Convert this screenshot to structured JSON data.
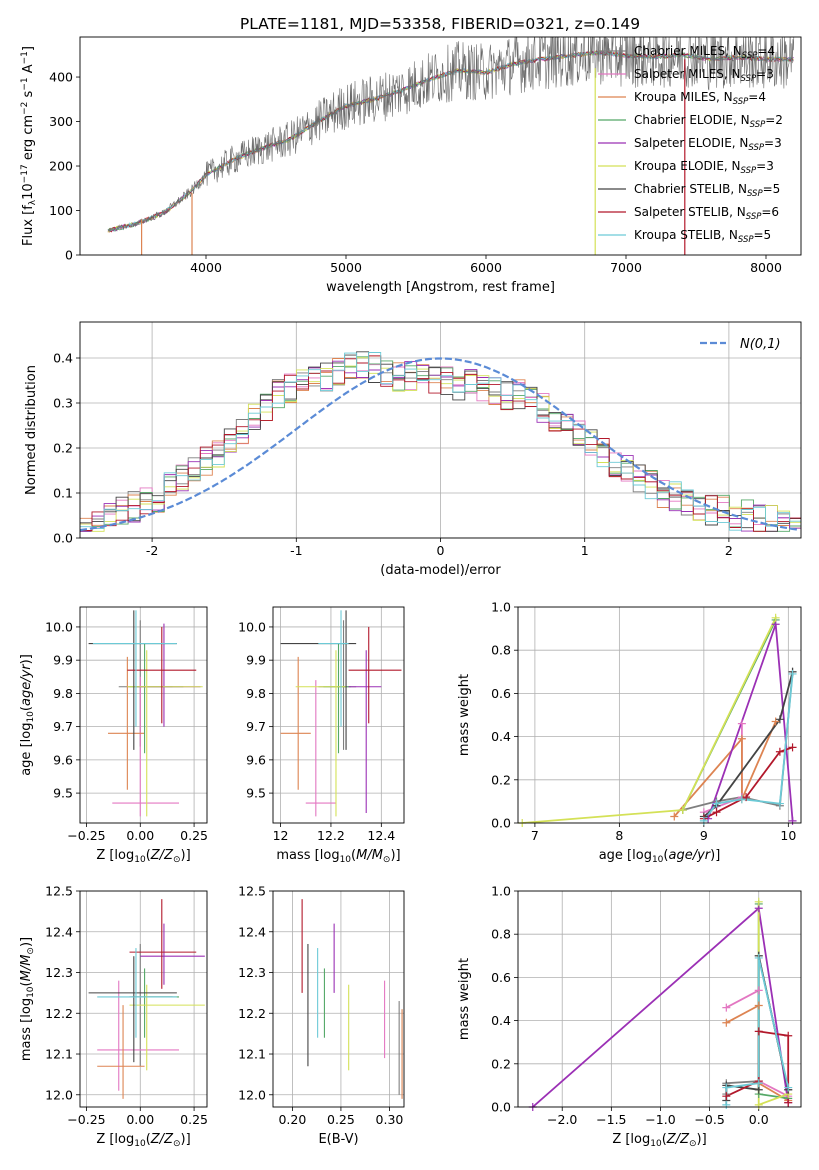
{
  "title": "PLATE=1181, MJD=53358, FIBERID=0321, z=0.149",
  "series_styles": [
    {
      "name": "Chabrier MILES, N_SSP=4",
      "label_main": "Chabrier MILES, N",
      "label_sub": "SSP",
      "label_tail": "=4",
      "color": "#7f7f7f"
    },
    {
      "name": "Salpeter MILES, N_SSP=3",
      "label_main": "Salpeter MILES, N",
      "label_sub": "SSP",
      "label_tail": "=3",
      "color": "#e377c2"
    },
    {
      "name": "Kroupa MILES, N_SSP=4",
      "label_main": "Kroupa MILES, N",
      "label_sub": "SSP",
      "label_tail": "=4",
      "color": "#dd8452"
    },
    {
      "name": "Chabrier ELODIE, N_SSP=2",
      "label_main": "Chabrier ELODIE, N",
      "label_sub": "SSP",
      "label_tail": "=2",
      "color": "#55a868"
    },
    {
      "name": "Salpeter ELODIE, N_SSP=3",
      "label_main": "Salpeter ELODIE, N",
      "label_sub": "SSP",
      "label_tail": "=3",
      "color": "#9b30b5"
    },
    {
      "name": "Kroupa ELODIE, N_SSP=3",
      "label_main": "Kroupa ELODIE, N",
      "label_sub": "SSP",
      "label_tail": "=3",
      "color": "#d4e157"
    },
    {
      "name": "Chabrier STELIB, N_SSP=5",
      "label_main": "Chabrier STELIB, N",
      "label_sub": "SSP",
      "label_tail": "=5",
      "color": "#444444"
    },
    {
      "name": "Salpeter STELIB, N_SSP=6",
      "label_main": "Salpeter STELIB, N",
      "label_sub": "SSP",
      "label_tail": "=6",
      "color": "#b2182b"
    },
    {
      "name": "Kroupa STELIB, N_SSP=5",
      "label_main": "Kroupa STELIB, N",
      "label_sub": "SSP",
      "label_tail": "=5",
      "color": "#6ccad6"
    }
  ],
  "chart_data": [
    {
      "id": "spectrum",
      "type": "line",
      "xlabel": "wavelength [Angstrom, rest frame]",
      "ylabel": "Flux [f_λ 10^-17 erg cm^-2 s^-1 A^-1]",
      "ylabel_parts": {
        "a": "Flux [f",
        "a_sub": "λ",
        "b": "10",
        "b_sup": "−17",
        "c": " erg cm",
        "c_sup": "−2",
        "d": " s",
        "d_sup": "−1",
        "e": " A",
        "e_sup": "−1",
        "f": "]"
      },
      "xlim": [
        3100,
        8250
      ],
      "ylim": [
        0,
        490
      ],
      "xticks": [
        4000,
        5000,
        6000,
        7000,
        8000
      ],
      "yticks": [
        0,
        100,
        200,
        300,
        400
      ],
      "grid": false,
      "legend": "top-right",
      "x": [
        3300,
        3500,
        3700,
        3900,
        4000,
        4200,
        4400,
        4600,
        4800,
        5000,
        5200,
        5400,
        5600,
        5800,
        6000,
        6200,
        6400,
        6600,
        6800,
        7000,
        7200,
        7400,
        7600,
        7800,
        8000,
        8200
      ],
      "y": [
        55,
        70,
        95,
        145,
        180,
        215,
        240,
        260,
        300,
        335,
        350,
        370,
        395,
        415,
        410,
        430,
        440,
        448,
        455,
        448,
        445,
        450,
        440,
        445,
        440,
        440
      ],
      "model_cutoffs": {
        "lower_x": [
          3540,
          3900
        ],
        "upper_x": [
          6780,
          7420
        ]
      }
    },
    {
      "id": "residual_histogram",
      "type": "step",
      "xlabel": "(data-model)/error",
      "ylabel": "Normed distribution",
      "xlim": [
        -2.5,
        2.5
      ],
      "ylim": [
        0,
        0.48
      ],
      "xticks": [
        -2,
        -1,
        0,
        1,
        2
      ],
      "yticks": [
        0.0,
        0.1,
        0.2,
        0.3,
        0.4
      ],
      "grid": true,
      "legend": "top-right",
      "reference_label": "N(0,1)",
      "bin_width": 0.1,
      "envelope": [
        0.03,
        0.04,
        0.05,
        0.06,
        0.07,
        0.08,
        0.09,
        0.11,
        0.13,
        0.15,
        0.17,
        0.19,
        0.21,
        0.24,
        0.27,
        0.29,
        0.32,
        0.33,
        0.34,
        0.35,
        0.36,
        0.37,
        0.38,
        0.39,
        0.38,
        0.37,
        0.36,
        0.36,
        0.36,
        0.35,
        0.35,
        0.34,
        0.34,
        0.33,
        0.33,
        0.32,
        0.32,
        0.3,
        0.29,
        0.27,
        0.25,
        0.23,
        0.21,
        0.19,
        0.17,
        0.15,
        0.13,
        0.12,
        0.1,
        0.09,
        0.08,
        0.07,
        0.06,
        0.06,
        0.05,
        0.05,
        0.04,
        0.04,
        0.03,
        0.03
      ]
    },
    {
      "id": "age_vs_Z",
      "type": "errorbar",
      "xlabel": "Z [log10(Z/Z⊙)]",
      "ylabel": "age [log10(age/yr)]",
      "xlim": [
        -0.28,
        0.31
      ],
      "ylim": [
        9.41,
        10.06
      ],
      "xticks": [
        -0.25,
        0.0,
        0.25
      ],
      "xticklabels": [
        "−0.25",
        "0.00",
        "0.25"
      ],
      "yticks": [
        9.5,
        9.6,
        9.7,
        9.8,
        9.9,
        10.0
      ],
      "grid": true,
      "points": [
        {
          "s": 0,
          "x": 0.0,
          "y": 9.82,
          "xl": -0.1,
          "xh": 0.15,
          "yl": 9.64,
          "yh": 10.02
        },
        {
          "s": 1,
          "x": 0.0,
          "y": 9.47,
          "xl": -0.13,
          "xh": 0.18,
          "yl": 9.43,
          "yh": 9.85
        },
        {
          "s": 2,
          "x": -0.06,
          "y": 9.68,
          "xl": -0.15,
          "xh": 0.02,
          "yl": 9.51,
          "yh": 9.91
        },
        {
          "s": 3,
          "x": 0.02,
          "y": 9.82,
          "xl": -0.05,
          "xh": 0.2,
          "yl": 9.62,
          "yh": 9.95
        },
        {
          "s": 4,
          "x": 0.11,
          "y": 9.82,
          "xl": -0.02,
          "xh": 0.28,
          "yl": 9.7,
          "yh": 10.01
        },
        {
          "s": 5,
          "x": 0.03,
          "y": 9.82,
          "xl": -0.06,
          "xh": 0.29,
          "yl": 9.43,
          "yh": 9.93
        },
        {
          "s": 6,
          "x": -0.03,
          "y": 9.95,
          "xl": -0.24,
          "xh": 0.17,
          "yl": 9.63,
          "yh": 10.05
        },
        {
          "s": 7,
          "x": 0.1,
          "y": 9.87,
          "xl": -0.06,
          "xh": 0.26,
          "yl": 9.71,
          "yh": 10.0
        },
        {
          "s": 8,
          "x": -0.02,
          "y": 9.95,
          "xl": -0.22,
          "xh": 0.17,
          "yl": 9.7,
          "yh": 10.05
        }
      ]
    },
    {
      "id": "age_vs_mass",
      "type": "errorbar",
      "xlabel": "mass [log10(M/M⊙)]",
      "ylabel": "",
      "xlim": [
        11.97,
        12.49
      ],
      "ylim": [
        9.41,
        10.06
      ],
      "xticks": [
        12.0,
        12.2,
        12.4
      ],
      "yticks": [
        9.5,
        9.6,
        9.7,
        9.8,
        9.9,
        10.0
      ],
      "grid": true,
      "points": [
        {
          "s": 0,
          "x": 12.25,
          "y": 9.82,
          "xl": 12.15,
          "xh": 12.3,
          "yl": 9.63,
          "yh": 10.02
        },
        {
          "s": 1,
          "x": 12.14,
          "y": 9.47,
          "xl": 12.1,
          "xh": 12.22,
          "yl": 9.43,
          "yh": 9.84
        },
        {
          "s": 2,
          "x": 12.07,
          "y": 9.68,
          "xl": 12.0,
          "xh": 12.12,
          "yl": 9.51,
          "yh": 9.91
        },
        {
          "s": 3,
          "x": 12.23,
          "y": 9.82,
          "xl": 12.17,
          "xh": 12.28,
          "yl": 9.62,
          "yh": 9.95
        },
        {
          "s": 4,
          "x": 12.34,
          "y": 9.82,
          "xl": 12.27,
          "xh": 12.4,
          "yl": 9.44,
          "yh": 9.93
        },
        {
          "s": 5,
          "x": 12.22,
          "y": 9.82,
          "xl": 12.06,
          "xh": 12.26,
          "yl": 9.43,
          "yh": 9.93
        },
        {
          "s": 6,
          "x": 12.26,
          "y": 9.95,
          "xl": 12.0,
          "xh": 12.3,
          "yl": 9.63,
          "yh": 10.05
        },
        {
          "s": 7,
          "x": 12.35,
          "y": 9.87,
          "xl": 12.27,
          "xh": 12.48,
          "yl": 9.71,
          "yh": 10.0
        },
        {
          "s": 8,
          "x": 12.24,
          "y": 9.95,
          "xl": 12.15,
          "xh": 12.27,
          "yl": 9.7,
          "yh": 10.05
        }
      ]
    },
    {
      "id": "weight_vs_age",
      "type": "line",
      "xlabel": "age [log10(age/yr)]",
      "ylabel": "mass weight",
      "xlim": [
        6.8,
        10.15
      ],
      "ylim": [
        0,
        1.0
      ],
      "xticks": [
        7,
        8,
        9,
        10
      ],
      "yticks": [
        0.0,
        0.2,
        0.4,
        0.6,
        0.8,
        1.0
      ],
      "grid": true,
      "series": [
        {
          "s": 0,
          "x": [
            8.75,
            9.15,
            9.45,
            9.9,
            10.05
          ],
          "y": [
            0.06,
            0.1,
            0.12,
            0.08,
            0.7
          ]
        },
        {
          "s": 1,
          "x": [
            9.45,
            9.45,
            9.0
          ],
          "y": [
            0.46,
            0.12,
            0.05
          ]
        },
        {
          "s": 2,
          "x": [
            8.65,
            9.45,
            9.45,
            9.85
          ],
          "y": [
            0.03,
            0.39,
            0.11,
            0.47
          ]
        },
        {
          "s": 3,
          "x": [
            8.75,
            9.85
          ],
          "y": [
            0.06,
            0.94
          ]
        },
        {
          "s": 4,
          "x": [
            9.05,
            9.85,
            10.05
          ],
          "y": [
            0.02,
            0.92,
            0.01
          ]
        },
        {
          "s": 5,
          "x": [
            6.85,
            8.75,
            9.85
          ],
          "y": [
            0.0,
            0.06,
            0.95
          ]
        },
        {
          "s": 6,
          "x": [
            9.0,
            9.15,
            9.9,
            10.05
          ],
          "y": [
            0.03,
            0.08,
            0.48,
            0.7
          ]
        },
        {
          "s": 7,
          "x": [
            9.0,
            9.15,
            9.5,
            9.9,
            10.05
          ],
          "y": [
            0.02,
            0.05,
            0.12,
            0.33,
            0.35
          ]
        },
        {
          "s": 8,
          "x": [
            9.0,
            9.15,
            9.45,
            9.9,
            10.05
          ],
          "y": [
            0.01,
            0.09,
            0.11,
            0.09,
            0.69
          ]
        }
      ]
    },
    {
      "id": "mass_vs_Z",
      "type": "errorbar",
      "xlabel": "Z [log10(Z/Z⊙)]",
      "ylabel": "mass [log10(M/M⊙)]",
      "xlim": [
        -0.28,
        0.31
      ],
      "ylim": [
        11.97,
        12.5
      ],
      "xticks": [
        -0.25,
        0.0,
        0.25
      ],
      "xticklabels": [
        "−0.25",
        "0.00",
        "0.25"
      ],
      "yticks": [
        12.0,
        12.1,
        12.2,
        12.3,
        12.4,
        12.5
      ],
      "grid": true,
      "points": [
        {
          "s": 0,
          "x": 0.0,
          "y": 12.24,
          "xl": -0.05,
          "xh": 0.15,
          "yl": 12.07,
          "yh": 12.37
        },
        {
          "s": 1,
          "x": -0.1,
          "y": 12.11,
          "xl": -0.2,
          "xh": 0.18,
          "yl": 12.01,
          "yh": 12.28
        },
        {
          "s": 2,
          "x": -0.08,
          "y": 12.07,
          "xl": -0.2,
          "xh": 0.02,
          "yl": 11.99,
          "yh": 12.22
        },
        {
          "s": 3,
          "x": 0.02,
          "y": 12.24,
          "xl": -0.04,
          "xh": 0.18,
          "yl": 12.14,
          "yh": 12.31
        },
        {
          "s": 4,
          "x": 0.11,
          "y": 12.34,
          "xl": 0.0,
          "xh": 0.3,
          "yl": 12.27,
          "yh": 12.42
        },
        {
          "s": 5,
          "x": 0.03,
          "y": 12.22,
          "xl": -0.05,
          "xh": 0.3,
          "yl": 12.06,
          "yh": 12.27
        },
        {
          "s": 6,
          "x": -0.03,
          "y": 12.25,
          "xl": -0.24,
          "xh": 0.17,
          "yl": 12.08,
          "yh": 12.34
        },
        {
          "s": 7,
          "x": 0.1,
          "y": 12.35,
          "xl": -0.05,
          "xh": 0.26,
          "yl": 12.26,
          "yh": 12.48
        },
        {
          "s": 8,
          "x": -0.02,
          "y": 12.24,
          "xl": -0.2,
          "xh": 0.17,
          "yl": 12.14,
          "yh": 12.36
        }
      ]
    },
    {
      "id": "mass_vs_EBV",
      "type": "errorbar",
      "xlabel": "E(B-V)",
      "ylabel": "",
      "xlim": [
        0.18,
        0.315
      ],
      "ylim": [
        11.97,
        12.5
      ],
      "xticks": [
        0.2,
        0.25,
        0.3
      ],
      "xticklabels": [
        "0.20",
        "0.25",
        "0.30"
      ],
      "yticks": [
        12.0,
        12.1,
        12.2,
        12.3,
        12.4,
        12.5
      ],
      "grid": true,
      "points": [
        {
          "s": 0,
          "x": 0.31,
          "y": 12.1,
          "xl": 0.31,
          "xh": 0.31,
          "yl": 12.0,
          "yh": 12.23
        },
        {
          "s": 1,
          "x": 0.295,
          "y": 12.18,
          "xl": 0.295,
          "xh": 0.295,
          "yl": 12.09,
          "yh": 12.28
        },
        {
          "s": 2,
          "x": 0.313,
          "y": 12.1,
          "xl": 0.313,
          "xh": 0.313,
          "yl": 11.99,
          "yh": 12.21
        },
        {
          "s": 3,
          "x": 0.233,
          "y": 12.22,
          "xl": 0.233,
          "xh": 0.233,
          "yl": 12.14,
          "yh": 12.31
        },
        {
          "s": 4,
          "x": 0.243,
          "y": 12.33,
          "xl": 0.243,
          "xh": 0.243,
          "yl": 12.25,
          "yh": 12.42
        },
        {
          "s": 5,
          "x": 0.258,
          "y": 12.16,
          "xl": 0.258,
          "xh": 0.258,
          "yl": 12.06,
          "yh": 12.27
        },
        {
          "s": 6,
          "x": 0.216,
          "y": 12.22,
          "xl": 0.216,
          "xh": 0.216,
          "yl": 12.07,
          "yh": 12.37
        },
        {
          "s": 7,
          "x": 0.21,
          "y": 12.36,
          "xl": 0.21,
          "xh": 0.21,
          "yl": 12.25,
          "yh": 12.48
        },
        {
          "s": 8,
          "x": 0.226,
          "y": 12.25,
          "xl": 0.226,
          "xh": 0.226,
          "yl": 12.14,
          "yh": 12.36
        }
      ]
    },
    {
      "id": "weight_vs_Z",
      "type": "line",
      "xlabel": "Z [log10(Z/Z⊙)]",
      "ylabel": "mass weight",
      "xlim": [
        -2.45,
        0.43
      ],
      "ylim": [
        0,
        1.0
      ],
      "xticks": [
        -2.0,
        -1.5,
        -1.0,
        -0.5,
        0.0
      ],
      "xticklabels": [
        "−2.0",
        "−1.5",
        "−1.0",
        "−0.5",
        "0.0"
      ],
      "yticks": [
        0.0,
        0.2,
        0.4,
        0.6,
        0.8,
        1.0
      ],
      "grid": true,
      "series": [
        {
          "s": 0,
          "x": [
            -0.33,
            -0.33,
            0.0,
            0.0,
            0.3
          ],
          "y": [
            0.06,
            0.11,
            0.12,
            0.7,
            0.08
          ]
        },
        {
          "s": 1,
          "x": [
            -0.33,
            0.0,
            0.0,
            0.3
          ],
          "y": [
            0.46,
            0.54,
            0.12,
            0.05
          ]
        },
        {
          "s": 2,
          "x": [
            -0.33,
            0.0,
            0.0,
            0.3
          ],
          "y": [
            0.39,
            0.47,
            0.11,
            0.03
          ]
        },
        {
          "s": 3,
          "x": [
            0.0,
            0.0,
            0.3
          ],
          "y": [
            0.94,
            0.06,
            0.04
          ]
        },
        {
          "s": 4,
          "x": [
            -2.3,
            0.0,
            0.3
          ],
          "y": [
            0.0,
            0.92,
            0.02
          ]
        },
        {
          "s": 5,
          "x": [
            0.0,
            0.0,
            0.3
          ],
          "y": [
            0.95,
            0.01,
            0.06
          ]
        },
        {
          "s": 6,
          "x": [
            -0.33,
            -0.33,
            0.0,
            0.0,
            0.3
          ],
          "y": [
            0.03,
            0.1,
            0.08,
            0.7,
            0.08
          ]
        },
        {
          "s": 7,
          "x": [
            -0.33,
            0.0,
            0.0,
            0.3,
            0.3
          ],
          "y": [
            0.05,
            0.12,
            0.35,
            0.33,
            0.02
          ]
        },
        {
          "s": 8,
          "x": [
            -0.33,
            -0.33,
            0.0,
            0.0,
            0.3
          ],
          "y": [
            0.01,
            0.09,
            0.11,
            0.69,
            0.09
          ]
        }
      ]
    }
  ]
}
